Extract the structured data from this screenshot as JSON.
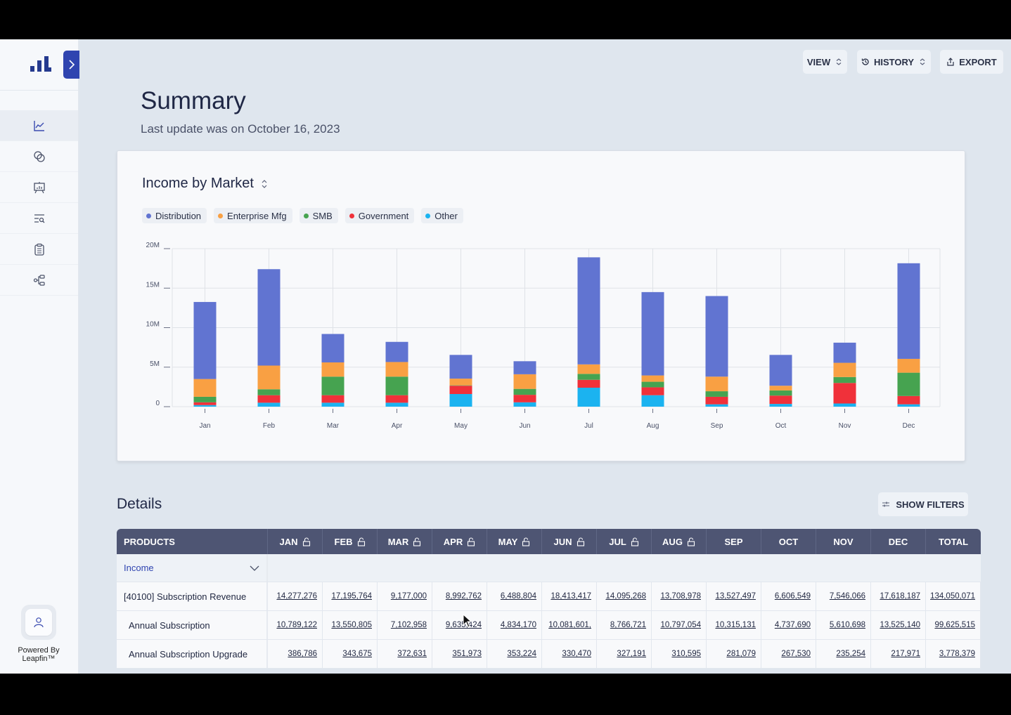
{
  "sidebar": {
    "logo": "bar-chart-logo",
    "expand_icon": "chevron-right-icon",
    "items": [
      {
        "icon": "trend-chart-icon",
        "active": true
      },
      {
        "icon": "coins-icon",
        "active": false
      },
      {
        "icon": "presentation-icon",
        "active": false
      },
      {
        "icon": "list-search-icon",
        "active": false
      },
      {
        "icon": "clipboard-icon",
        "active": false
      },
      {
        "icon": "hierarchy-icon",
        "active": false
      }
    ],
    "user_icon": "user-icon",
    "powered_by_line1": "Powered By",
    "powered_by_line2": "Leapfin™"
  },
  "toolbar": {
    "view_label": "VIEW",
    "history_label": "HISTORY",
    "export_label": "EXPORT"
  },
  "header": {
    "title": "Summary",
    "subtitle": "Last update was on October 16, 2023"
  },
  "chart_card": {
    "title": "Income by Market"
  },
  "chart_data": {
    "type": "bar",
    "stacked": true,
    "title": "Income by Market",
    "xlabel": "",
    "ylabel": "",
    "ylim": [
      0,
      20000000
    ],
    "yticks": [
      0,
      5000000,
      10000000,
      15000000,
      20000000
    ],
    "ytick_labels": [
      "0",
      "5M",
      "10M",
      "15M",
      "20M"
    ],
    "grid": true,
    "legend_position": "top-left",
    "categories": [
      "Jan",
      "Feb",
      "Mar",
      "Apr",
      "May",
      "Jun",
      "Jul",
      "Aug",
      "Sep",
      "Oct",
      "Nov",
      "Dec"
    ],
    "series": [
      {
        "name": "Other",
        "color": "#1bb3f0",
        "values": [
          0.2,
          0.5,
          0.5,
          0.5,
          1.6,
          0.55,
          2.4,
          1.45,
          0.3,
          0.35,
          0.4,
          0.3
        ]
      },
      {
        "name": "Government",
        "color": "#f0313a",
        "values": [
          0.35,
          0.95,
          0.95,
          0.95,
          1.05,
          0.95,
          1.0,
          1.0,
          0.95,
          1.05,
          2.6,
          1.05
        ]
      },
      {
        "name": "SMB",
        "color": "#46a350",
        "values": [
          0.7,
          0.75,
          2.35,
          2.35,
          0.05,
          0.75,
          0.75,
          0.7,
          0.7,
          0.65,
          0.75,
          2.95
        ]
      },
      {
        "name": "Enterprise Mfg",
        "color": "#f9a043",
        "values": [
          2.25,
          3.0,
          1.8,
          1.85,
          0.85,
          1.85,
          1.2,
          0.8,
          1.85,
          0.6,
          1.8,
          1.75
        ]
      },
      {
        "name": "Distribution",
        "color": "#6174d1",
        "values": [
          9.75,
          12.2,
          3.6,
          2.55,
          3.0,
          1.65,
          13.55,
          10.55,
          10.2,
          3.9,
          2.55,
          12.1
        ]
      }
    ],
    "value_unit": "millions",
    "legend_order": [
      "Distribution",
      "Enterprise Mfg",
      "SMB",
      "Government",
      "Other"
    ]
  },
  "details": {
    "title": "Details",
    "show_filters_label": "SHOW FILTERS",
    "columns": [
      {
        "label": "PRODUCTS",
        "lock": false
      },
      {
        "label": "JAN",
        "lock": true
      },
      {
        "label": "FEB",
        "lock": true
      },
      {
        "label": "MAR",
        "lock": true
      },
      {
        "label": "APR",
        "lock": true
      },
      {
        "label": "MAY",
        "lock": true
      },
      {
        "label": "JUN",
        "lock": true
      },
      {
        "label": "JUL",
        "lock": true
      },
      {
        "label": "AUG",
        "lock": true
      },
      {
        "label": "SEP",
        "lock": false
      },
      {
        "label": "OCT",
        "lock": false
      },
      {
        "label": "NOV",
        "lock": false
      },
      {
        "label": "DEC",
        "lock": false
      },
      {
        "label": "TOTAL",
        "lock": false
      }
    ],
    "group_label": "Income",
    "rows": [
      {
        "label": "[40100] Subscription Revenue",
        "child": false,
        "values": [
          "14,277,276",
          "17,195,764",
          "9,177,000",
          "8,992,762",
          "6,488,804",
          "18,413,417",
          "14,095,268",
          "13,708,978",
          "13,527,497",
          "6,606,549",
          "7,546,066",
          "17,618,187",
          "134,050,071"
        ]
      },
      {
        "label": "Annual Subscription",
        "child": true,
        "values": [
          "10,789,122",
          "13,550,805",
          "7,102,958",
          "9,635,424",
          "4,834,170",
          "10,081,601,",
          "8,766,721",
          "10,797,054",
          "10,315,131",
          "4,737,690",
          "5,610,698",
          "13,525,140",
          "99,625,515"
        ]
      },
      {
        "label": "Annual Subscription Upgrade",
        "child": true,
        "values": [
          "386,786",
          "343,675",
          "372,631",
          "351,973",
          "353,224",
          "330,470",
          "327,191",
          "310,595",
          "281,079",
          "267,530",
          "235,254",
          "217,971",
          "3,778,379"
        ]
      }
    ]
  }
}
